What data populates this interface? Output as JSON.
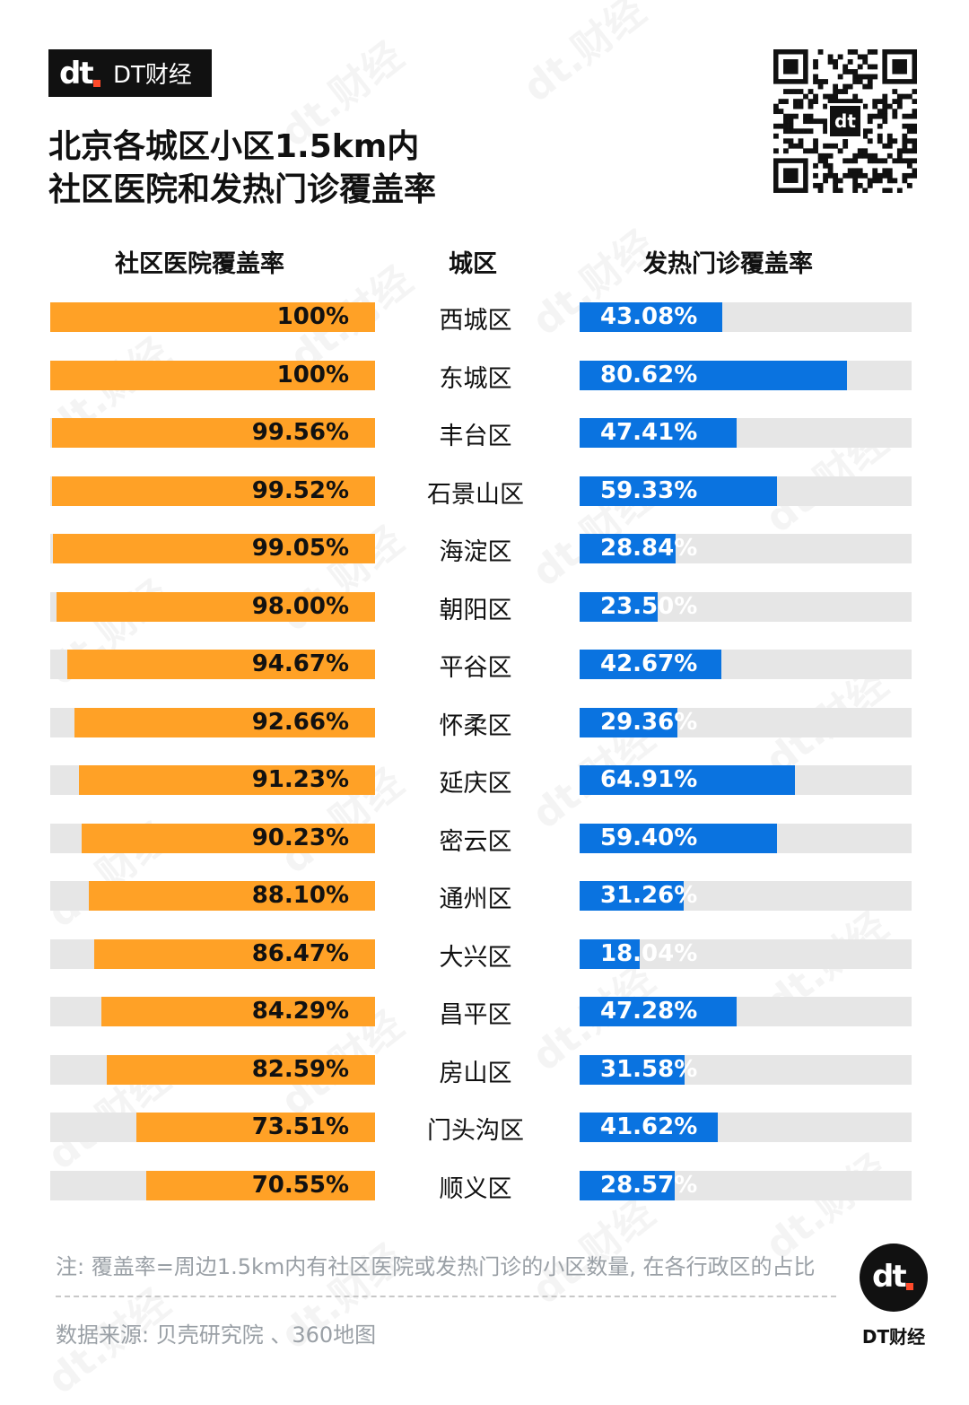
{
  "brand": {
    "name": "DT财经",
    "mark": "dt"
  },
  "title": {
    "line1": "北京各城区小区1.5km内",
    "line2": "社区医院和发热门诊覆盖率"
  },
  "headers": {
    "left": "社区医院覆盖率",
    "center": "城区",
    "right": "发热门诊覆盖率"
  },
  "chart_data": {
    "type": "bar",
    "categories": [
      "西城区",
      "东城区",
      "丰台区",
      "石景山区",
      "海淀区",
      "朝阳区",
      "平谷区",
      "怀柔区",
      "延庆区",
      "密云区",
      "通州区",
      "大兴区",
      "昌平区",
      "房山区",
      "门头沟区",
      "顺义区"
    ],
    "series": [
      {
        "name": "社区医院覆盖率",
        "values": [
          100,
          100,
          99.56,
          99.52,
          99.05,
          98.0,
          94.67,
          92.66,
          91.23,
          90.23,
          88.1,
          86.47,
          84.29,
          82.59,
          73.51,
          70.55
        ],
        "labels": [
          "100%",
          "100%",
          "99.56%",
          "99.52%",
          "99.05%",
          "98.00%",
          "94.67%",
          "92.66%",
          "91.23%",
          "90.23%",
          "88.10%",
          "86.47%",
          "84.29%",
          "82.59%",
          "73.51%",
          "70.55%"
        ],
        "color": "#ffa126"
      },
      {
        "name": "发热门诊覆盖率",
        "values": [
          43.08,
          80.62,
          47.41,
          59.33,
          28.84,
          23.5,
          42.67,
          29.36,
          64.91,
          59.4,
          31.26,
          18.04,
          47.28,
          31.58,
          41.62,
          28.57
        ],
        "labels": [
          "43.08%",
          "80.62%",
          "47.41%",
          "59.33%",
          "28.84%",
          "23.50%",
          "42.67%",
          "29.36%",
          "64.91%",
          "59.40%",
          "31.26%",
          "18.04%",
          "47.28%",
          "31.58%",
          "41.62%",
          "28.57%"
        ],
        "color": "#0a73e0"
      }
    ],
    "track_color": "#e6e6e6"
  },
  "footer": {
    "note": "注: 覆盖率=周边1.5km内有社区医院或发热门诊的小区数量, 在各行政区的占比",
    "source": "数据来源: 贝壳研究院 、360地图",
    "logo_text": "DT财经"
  }
}
